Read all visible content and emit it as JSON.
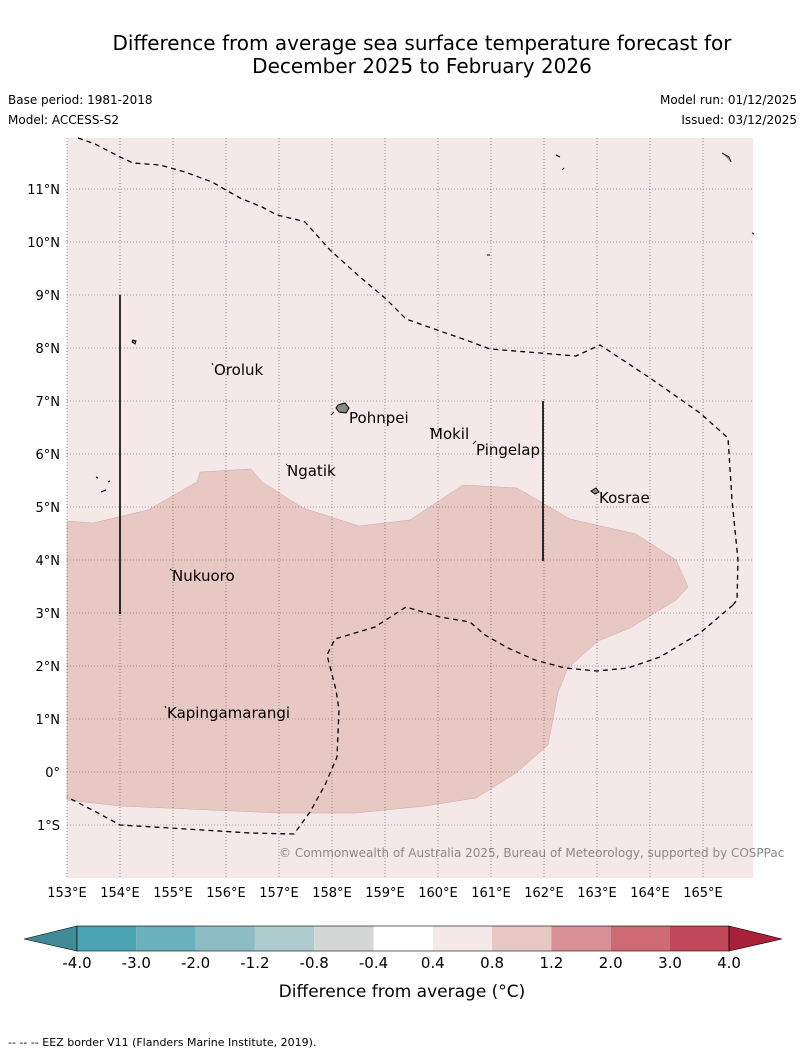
{
  "title": {
    "line1": "Difference from average sea surface temperature forecast for",
    "line2": "December 2025 to February 2026"
  },
  "meta": {
    "base_period": "Base period: 1981-2018",
    "model": "Model: ACCESS-S2",
    "model_run": "Model run: 01/12/2025",
    "issued": "Issued: 03/12/2025"
  },
  "map": {
    "lat_labels": [
      "11°N",
      "10°N",
      "9°N",
      "8°N",
      "7°N",
      "6°N",
      "5°N",
      "4°N",
      "3°N",
      "2°N",
      "1°N",
      "0°",
      "1°S"
    ],
    "lon_labels": [
      "153°E",
      "154°E",
      "155°E",
      "156°E",
      "157°E",
      "158°E",
      "159°E",
      "160°E",
      "161°E",
      "162°E",
      "163°E",
      "164°E",
      "165°E"
    ],
    "places": [
      {
        "name": "Oroluk"
      },
      {
        "name": "Pohnpei"
      },
      {
        "name": "Mokil"
      },
      {
        "name": "Pingelap"
      },
      {
        "name": "Ngatik"
      },
      {
        "name": "Kosrae"
      },
      {
        "name": "Nukuoro"
      },
      {
        "name": "Kapingamarangi"
      }
    ],
    "copyright": "© Commonwealth of Australia 2025, Bureau of Meteorology, supported by COSPPac",
    "colors": {
      "background_category": "#f5e8e8",
      "anomaly_category": "#e8c8c3",
      "grid": "#555555",
      "eez": "#000000"
    }
  },
  "colorbar": {
    "ticks": [
      "-4.0",
      "-3.0",
      "-2.0",
      "-1.2",
      "-0.8",
      "-0.4",
      "0.4",
      "0.8",
      "1.2",
      "2.0",
      "3.0",
      "4.0"
    ],
    "colors": [
      "#3f8c98",
      "#4aa4b2",
      "#6ab0bd",
      "#8ebcc5",
      "#aecbcd",
      "#d5d7d6",
      "#ffffff",
      "#f5e8e8",
      "#e8c8c3",
      "#d98f96",
      "#cd6a74",
      "#c0485a",
      "#a8203a"
    ],
    "label": "Difference from average (°C)"
  },
  "footer": "--  --  -- EEZ border V11 (Flanders Marine Institute, 2019)."
}
